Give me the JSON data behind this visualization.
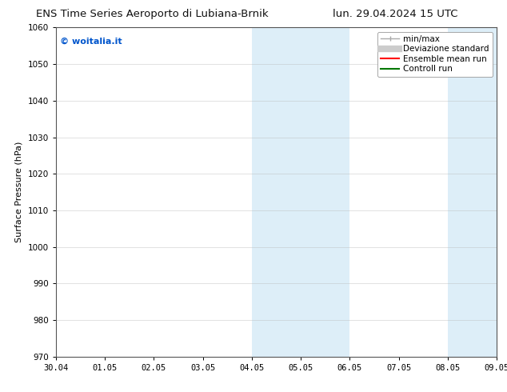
{
  "title_left": "ENS Time Series Aeroporto di Lubiana-Brnik",
  "title_right": "lun. 29.04.2024 15 UTC",
  "ylabel": "Surface Pressure (hPa)",
  "xlim_dates": [
    "30.04",
    "01.05",
    "02.05",
    "03.05",
    "04.05",
    "05.05",
    "06.05",
    "07.05",
    "08.05",
    "09.05"
  ],
  "ylim": [
    970,
    1060
  ],
  "yticks": [
    970,
    980,
    990,
    1000,
    1010,
    1020,
    1030,
    1040,
    1050,
    1060
  ],
  "background_color": "#ffffff",
  "shaded_regions": [
    {
      "xstart": 4.0,
      "xend": 5.0,
      "color": "#ddeef8"
    },
    {
      "xstart": 5.0,
      "xend": 6.0,
      "color": "#ddeef8"
    },
    {
      "xstart": 8.0,
      "xend": 9.0,
      "color": "#ddeef8"
    }
  ],
  "watermark_text": "© woitalia.it",
  "watermark_color": "#0055cc",
  "legend_entries": [
    {
      "label": "min/max",
      "color": "#aaaaaa",
      "lw": 1.0
    },
    {
      "label": "Deviazione standard",
      "color": "#cccccc",
      "lw": 6
    },
    {
      "label": "Ensemble mean run",
      "color": "#ff0000",
      "lw": 1.5
    },
    {
      "label": "Controll run",
      "color": "#007700",
      "lw": 1.5
    }
  ],
  "grid_color": "#bbbbbb",
  "grid_alpha": 0.5,
  "title_fontsize": 9.5,
  "axis_label_fontsize": 8,
  "tick_fontsize": 7.5,
  "watermark_fontsize": 8,
  "legend_fontsize": 7.5,
  "fig_width": 6.34,
  "fig_height": 4.9,
  "dpi": 100
}
